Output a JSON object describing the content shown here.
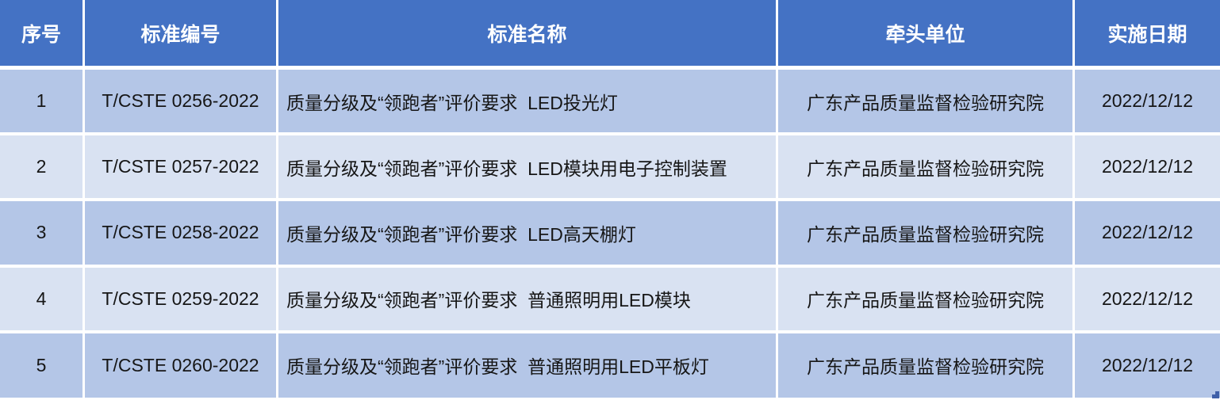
{
  "table": {
    "columns": [
      {
        "key": "index",
        "label": "序号"
      },
      {
        "key": "code",
        "label": "标准编号"
      },
      {
        "key": "name",
        "label": "标准名称"
      },
      {
        "key": "unit",
        "label": "牵头单位"
      },
      {
        "key": "date",
        "label": "实施日期"
      }
    ],
    "rows": [
      {
        "index": "1",
        "code": "T/CSTE 0256-2022",
        "name": "质量分级及“领跑者”评价要求  LED投光灯",
        "unit": "广东产品质量监督检验研究院",
        "date": "2022/12/12"
      },
      {
        "index": "2",
        "code": "T/CSTE 0257-2022",
        "name": "质量分级及“领跑者”评价要求  LED模块用电子控制装置",
        "unit": "广东产品质量监督检验研究院",
        "date": "2022/12/12"
      },
      {
        "index": "3",
        "code": "T/CSTE 0258-2022",
        "name": "质量分级及“领跑者”评价要求  LED高天棚灯",
        "unit": "广东产品质量监督检验研究院",
        "date": "2022/12/12"
      },
      {
        "index": "4",
        "code": "T/CSTE 0259-2022",
        "name": "质量分级及“领跑者”评价要求  普通照明用LED模块",
        "unit": "广东产品质量监督检验研究院",
        "date": "2022/12/12"
      },
      {
        "index": "5",
        "code": "T/CSTE 0260-2022",
        "name": "质量分级及“领跑者”评价要求  普通照明用LED平板灯",
        "unit": "广东产品质量监督检验研究院",
        "date": "2022/12/12"
      }
    ]
  },
  "colors": {
    "header_bg": "#4472C4",
    "row_odd_bg": "#B4C6E7",
    "row_even_bg": "#D9E2F2",
    "grid": "#FFFFFF",
    "header_text": "#FFFFFF",
    "body_text": "#161616",
    "handle": "#3F5FA8"
  }
}
